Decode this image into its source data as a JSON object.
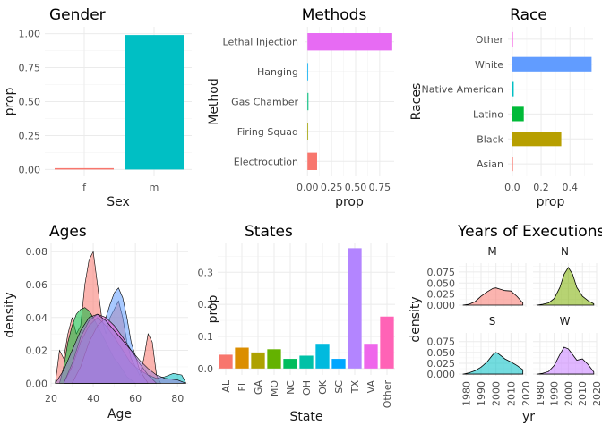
{
  "chart_data": [
    {
      "type": "bar",
      "title": "Gender",
      "xlabel": "Sex",
      "ylabel": "prop",
      "categories": [
        "f",
        "m"
      ],
      "values": [
        0.01,
        0.99
      ],
      "colors": [
        "#F8766D",
        "#00BFC4"
      ],
      "ylim": [
        0,
        1.05
      ],
      "yticks": [
        "0.00",
        "0.25",
        "0.50",
        "0.75",
        "1.00"
      ],
      "grid": true
    },
    {
      "type": "bar",
      "orientation": "horizontal",
      "title": "Methods",
      "xlabel": "prop",
      "ylabel": "Method",
      "categories": [
        "Electrocution",
        "Firing Squad",
        "Gas Chamber",
        "Hanging",
        "Lethal Injection"
      ],
      "values": [
        0.1,
        0.0,
        0.01,
        0.0,
        0.88
      ],
      "colors": [
        "#F8766D",
        "#A3A500",
        "#00BF7D",
        "#00B0F6",
        "#E76BF3"
      ],
      "xlim": [
        -0.03,
        0.9
      ],
      "xticks": [
        "0.00",
        "0.25",
        "0.50",
        "0.75"
      ],
      "grid": true
    },
    {
      "type": "bar",
      "orientation": "horizontal",
      "title": "Race",
      "xlabel": "prop",
      "ylabel": "Races",
      "categories": [
        "Asian",
        "Black",
        "Latino",
        "Native American",
        "White",
        "Other"
      ],
      "values": [
        0.003,
        0.34,
        0.08,
        0.01,
        0.55,
        0.003
      ],
      "colors": [
        "#F8766D",
        "#B79F00",
        "#00BA38",
        "#00BFC4",
        "#619CFF",
        "#F564E3"
      ],
      "xlim": [
        -0.03,
        0.56
      ],
      "xticks": [
        "0.0",
        "0.2",
        "0.4"
      ],
      "grid": true
    },
    {
      "type": "area",
      "title": "Ages",
      "xlabel": "Age",
      "ylabel": "density",
      "xlim": [
        20,
        85
      ],
      "ylim": [
        0,
        0.085
      ],
      "xticks": [
        "20",
        "40",
        "60",
        "80"
      ],
      "yticks": [
        "0.00",
        "0.02",
        "0.04",
        "0.06",
        "0.08"
      ],
      "grid": true,
      "series": [
        {
          "color": "#F8766D",
          "x": [
            22,
            24,
            26,
            28,
            30,
            32,
            34,
            36,
            38,
            40,
            42,
            44,
            46,
            48,
            50,
            52,
            54,
            56,
            58,
            60,
            62,
            64,
            66,
            68,
            70,
            72
          ],
          "y": [
            0.0,
            0.02,
            0.015,
            0.03,
            0.04,
            0.03,
            0.035,
            0.06,
            0.075,
            0.08,
            0.06,
            0.04,
            0.03,
            0.04,
            0.045,
            0.05,
            0.04,
            0.025,
            0.015,
            0.01,
            0.005,
            0.015,
            0.03,
            0.025,
            0.005,
            0.0
          ]
        },
        {
          "color": "#00BA38",
          "x": [
            24,
            26,
            28,
            30,
            32,
            34,
            36,
            38,
            40,
            42,
            44,
            46,
            48,
            50,
            52,
            54,
            56,
            58,
            60
          ],
          "y": [
            0.0,
            0.01,
            0.025,
            0.035,
            0.042,
            0.045,
            0.046,
            0.044,
            0.04,
            0.035,
            0.03,
            0.025,
            0.02,
            0.015,
            0.012,
            0.008,
            0.004,
            0.002,
            0.0
          ]
        },
        {
          "color": "#00BFC4",
          "x": [
            26,
            30,
            34,
            38,
            42,
            46,
            50,
            54,
            58,
            62,
            66,
            70,
            74,
            78,
            82,
            84
          ],
          "y": [
            0.0,
            0.01,
            0.025,
            0.035,
            0.04,
            0.035,
            0.028,
            0.02,
            0.012,
            0.008,
            0.005,
            0.003,
            0.004,
            0.006,
            0.005,
            0.0
          ]
        },
        {
          "color": "#619CFF",
          "x": [
            30,
            34,
            38,
            42,
            46,
            48,
            50,
            52,
            54,
            56,
            58,
            62,
            66
          ],
          "y": [
            0.0,
            0.01,
            0.025,
            0.035,
            0.04,
            0.048,
            0.055,
            0.058,
            0.052,
            0.04,
            0.025,
            0.008,
            0.0
          ]
        },
        {
          "color": "#F564E3",
          "x": [
            26,
            30,
            34,
            38,
            42,
            46,
            50,
            54,
            58,
            62,
            66,
            70
          ],
          "y": [
            0.0,
            0.012,
            0.028,
            0.038,
            0.042,
            0.04,
            0.035,
            0.028,
            0.02,
            0.012,
            0.005,
            0.0
          ]
        },
        {
          "color": "#9A7ED6",
          "x": [
            22,
            26,
            30,
            34,
            38,
            42,
            46,
            50,
            54,
            58,
            62,
            66,
            70,
            74,
            80,
            84
          ],
          "y": [
            0.0,
            0.008,
            0.02,
            0.032,
            0.04,
            0.042,
            0.038,
            0.032,
            0.026,
            0.02,
            0.014,
            0.009,
            0.005,
            0.003,
            0.002,
            0.0
          ]
        }
      ]
    },
    {
      "type": "bar",
      "title": "States",
      "xlabel": "State",
      "ylabel": "prop",
      "categories": [
        "AL",
        "FL",
        "GA",
        "MO",
        "NC",
        "OH",
        "OK",
        "SC",
        "TX",
        "VA",
        "Other"
      ],
      "values": [
        0.043,
        0.065,
        0.05,
        0.06,
        0.03,
        0.04,
        0.077,
        0.03,
        0.375,
        0.077,
        0.162
      ],
      "colors": [
        "#F8766D",
        "#DB8E00",
        "#AEA200",
        "#64B200",
        "#00BD5C",
        "#00C1A7",
        "#00BADE",
        "#00A6FF",
        "#B385FF",
        "#EF67EB",
        "#FF63B6"
      ],
      "ylim": [
        -0.02,
        0.39
      ],
      "yticks": [
        "0.0",
        "0.1",
        "0.2",
        "0.3"
      ],
      "grid": true
    },
    {
      "type": "area",
      "title": "Years of Executions",
      "xlabel": "yr",
      "ylabel": "density",
      "xlim": [
        1975,
        2020
      ],
      "ylim": [
        0,
        0.1
      ],
      "xticks": [
        "1980",
        "1990",
        "2000",
        "2010",
        "2020"
      ],
      "yticks": [
        "0.000",
        "0.025",
        "0.050",
        "0.075"
      ],
      "facets": [
        {
          "name": "M",
          "color": "#F8766D",
          "x": [
            1978,
            1982,
            1986,
            1990,
            1994,
            1998,
            2000,
            2002,
            2006,
            2010,
            2014,
            2018
          ],
          "y": [
            0.0,
            0.002,
            0.008,
            0.02,
            0.03,
            0.038,
            0.039,
            0.037,
            0.033,
            0.032,
            0.02,
            0.005
          ]
        },
        {
          "name": "N",
          "color": "#7CAE00",
          "x": [
            1978,
            1982,
            1986,
            1990,
            1994,
            1997,
            2000,
            2003,
            2006,
            2010,
            2014,
            2018
          ],
          "y": [
            0.0,
            0.002,
            0.005,
            0.015,
            0.04,
            0.07,
            0.085,
            0.07,
            0.04,
            0.02,
            0.01,
            0.003
          ]
        },
        {
          "name": "S",
          "color": "#00BFC4",
          "x": [
            1978,
            1982,
            1986,
            1990,
            1994,
            1998,
            2000,
            2002,
            2006,
            2010,
            2014,
            2018
          ],
          "y": [
            0.0,
            0.003,
            0.008,
            0.016,
            0.028,
            0.045,
            0.05,
            0.046,
            0.035,
            0.028,
            0.02,
            0.01
          ]
        },
        {
          "name": "W",
          "color": "#C77CFF",
          "x": [
            1978,
            1982,
            1986,
            1990,
            1994,
            1997,
            2000,
            2003,
            2006,
            2010,
            2014,
            2018
          ],
          "y": [
            0.0,
            0.002,
            0.006,
            0.02,
            0.045,
            0.062,
            0.058,
            0.045,
            0.032,
            0.035,
            0.022,
            0.005
          ]
        }
      ]
    }
  ]
}
